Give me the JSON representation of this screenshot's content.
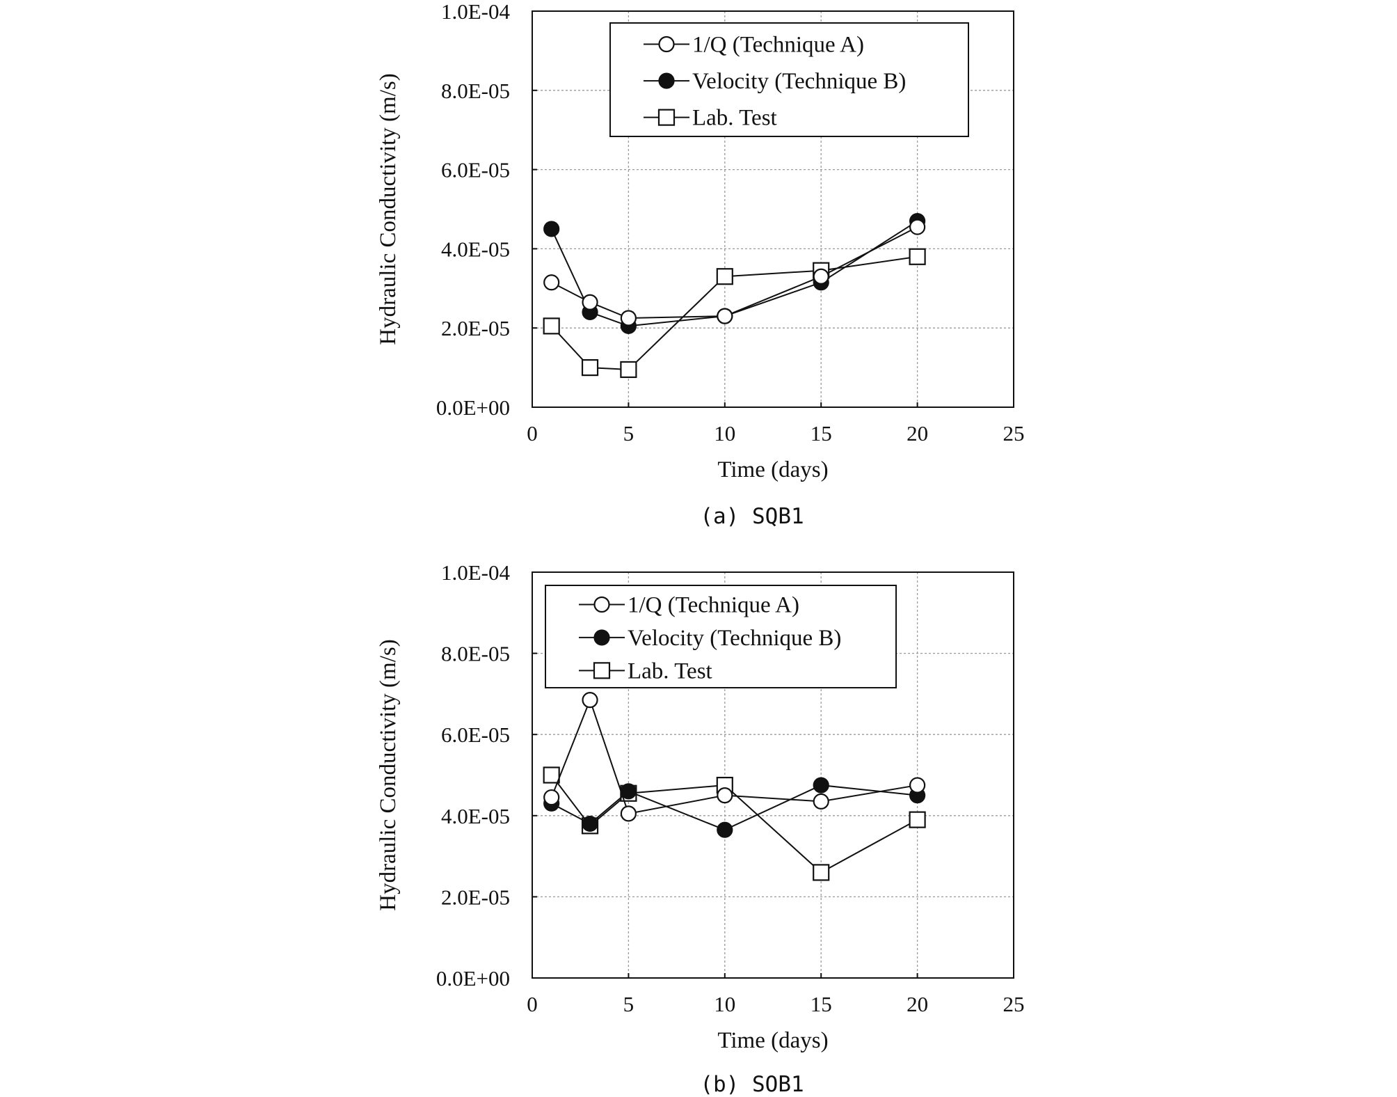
{
  "chart_data": [
    {
      "type": "line",
      "caption": "(a) SQB1",
      "xlabel": "Time (days)",
      "ylabel": "Hydraulic Conductivity (m/s)",
      "xlim": [
        0,
        25
      ],
      "ylim": [
        0,
        0.0001
      ],
      "xticks": [
        "0",
        "5",
        "10",
        "15",
        "20",
        "25"
      ],
      "yticks": [
        "0.0E+00",
        "2.0E-05",
        "4.0E-05",
        "6.0E-05",
        "8.0E-05",
        "1.0E-04"
      ],
      "grid": true,
      "legend_position": "top",
      "x": [
        1,
        3,
        5,
        10,
        15,
        20
      ],
      "series": [
        {
          "name": "1/Q (Technique A)",
          "marker": "open-circle",
          "values": [
            3.15e-05,
            2.65e-05,
            2.25e-05,
            2.3e-05,
            3.3e-05,
            4.55e-05
          ]
        },
        {
          "name": "Velocity (Technique B)",
          "marker": "filled-circle",
          "values": [
            4.5e-05,
            2.4e-05,
            2.05e-05,
            2.3e-05,
            3.15e-05,
            4.7e-05
          ]
        },
        {
          "name": "Lab. Test",
          "marker": "open-square",
          "values": [
            2.05e-05,
            1e-05,
            9.5e-06,
            3.3e-05,
            3.45e-05,
            3.8e-05
          ]
        }
      ]
    },
    {
      "type": "line",
      "caption": "(b) SOB1",
      "xlabel": "Time (days)",
      "ylabel": "Hydraulic Conductivity (m/s)",
      "xlim": [
        0,
        25
      ],
      "ylim": [
        0,
        0.0001
      ],
      "xticks": [
        "0",
        "5",
        "10",
        "15",
        "20",
        "25"
      ],
      "yticks": [
        "0.0E+00",
        "2.0E-05",
        "4.0E-05",
        "6.0E-05",
        "8.0E-05",
        "1.0E-04"
      ],
      "grid": true,
      "legend_position": "top",
      "x": [
        1,
        3,
        5,
        10,
        15,
        20
      ],
      "series": [
        {
          "name": "1/Q (Technique A)",
          "marker": "open-circle",
          "values": [
            4.45e-05,
            6.85e-05,
            4.05e-05,
            4.5e-05,
            4.35e-05,
            4.75e-05
          ]
        },
        {
          "name": "Velocity (Technique B)",
          "marker": "filled-circle",
          "values": [
            4.3e-05,
            3.8e-05,
            4.6e-05,
            3.65e-05,
            4.75e-05,
            4.5e-05
          ]
        },
        {
          "name": "Lab. Test",
          "marker": "open-square",
          "values": [
            5e-05,
            3.75e-05,
            4.55e-05,
            4.75e-05,
            2.6e-05,
            3.9e-05
          ]
        }
      ]
    }
  ]
}
